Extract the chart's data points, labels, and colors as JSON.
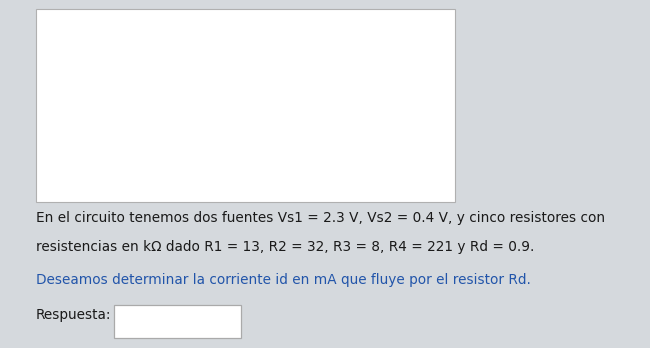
{
  "background_color": "#d5d9dd",
  "panel_bg": "#ffffff",
  "text_line1": "En el circuito tenemos dos fuentes Vs1 = 2.3 V, Vs2 = 0.4 V, y cinco resistores con",
  "text_line2": "resistencias en kΩ dado R1 = 13, R2 = 32, R3 = 8, R4 = 221 y Rd = 0.9.",
  "text_line3": "Deseamos determinar la corriente id en mA que fluye por el resistor Rd.",
  "text_label": "Respuesta:",
  "text_color": "#1a1a1a",
  "blue_color": "#2255aa",
  "font_size_main": 9.8,
  "font_size_label": 9.8
}
